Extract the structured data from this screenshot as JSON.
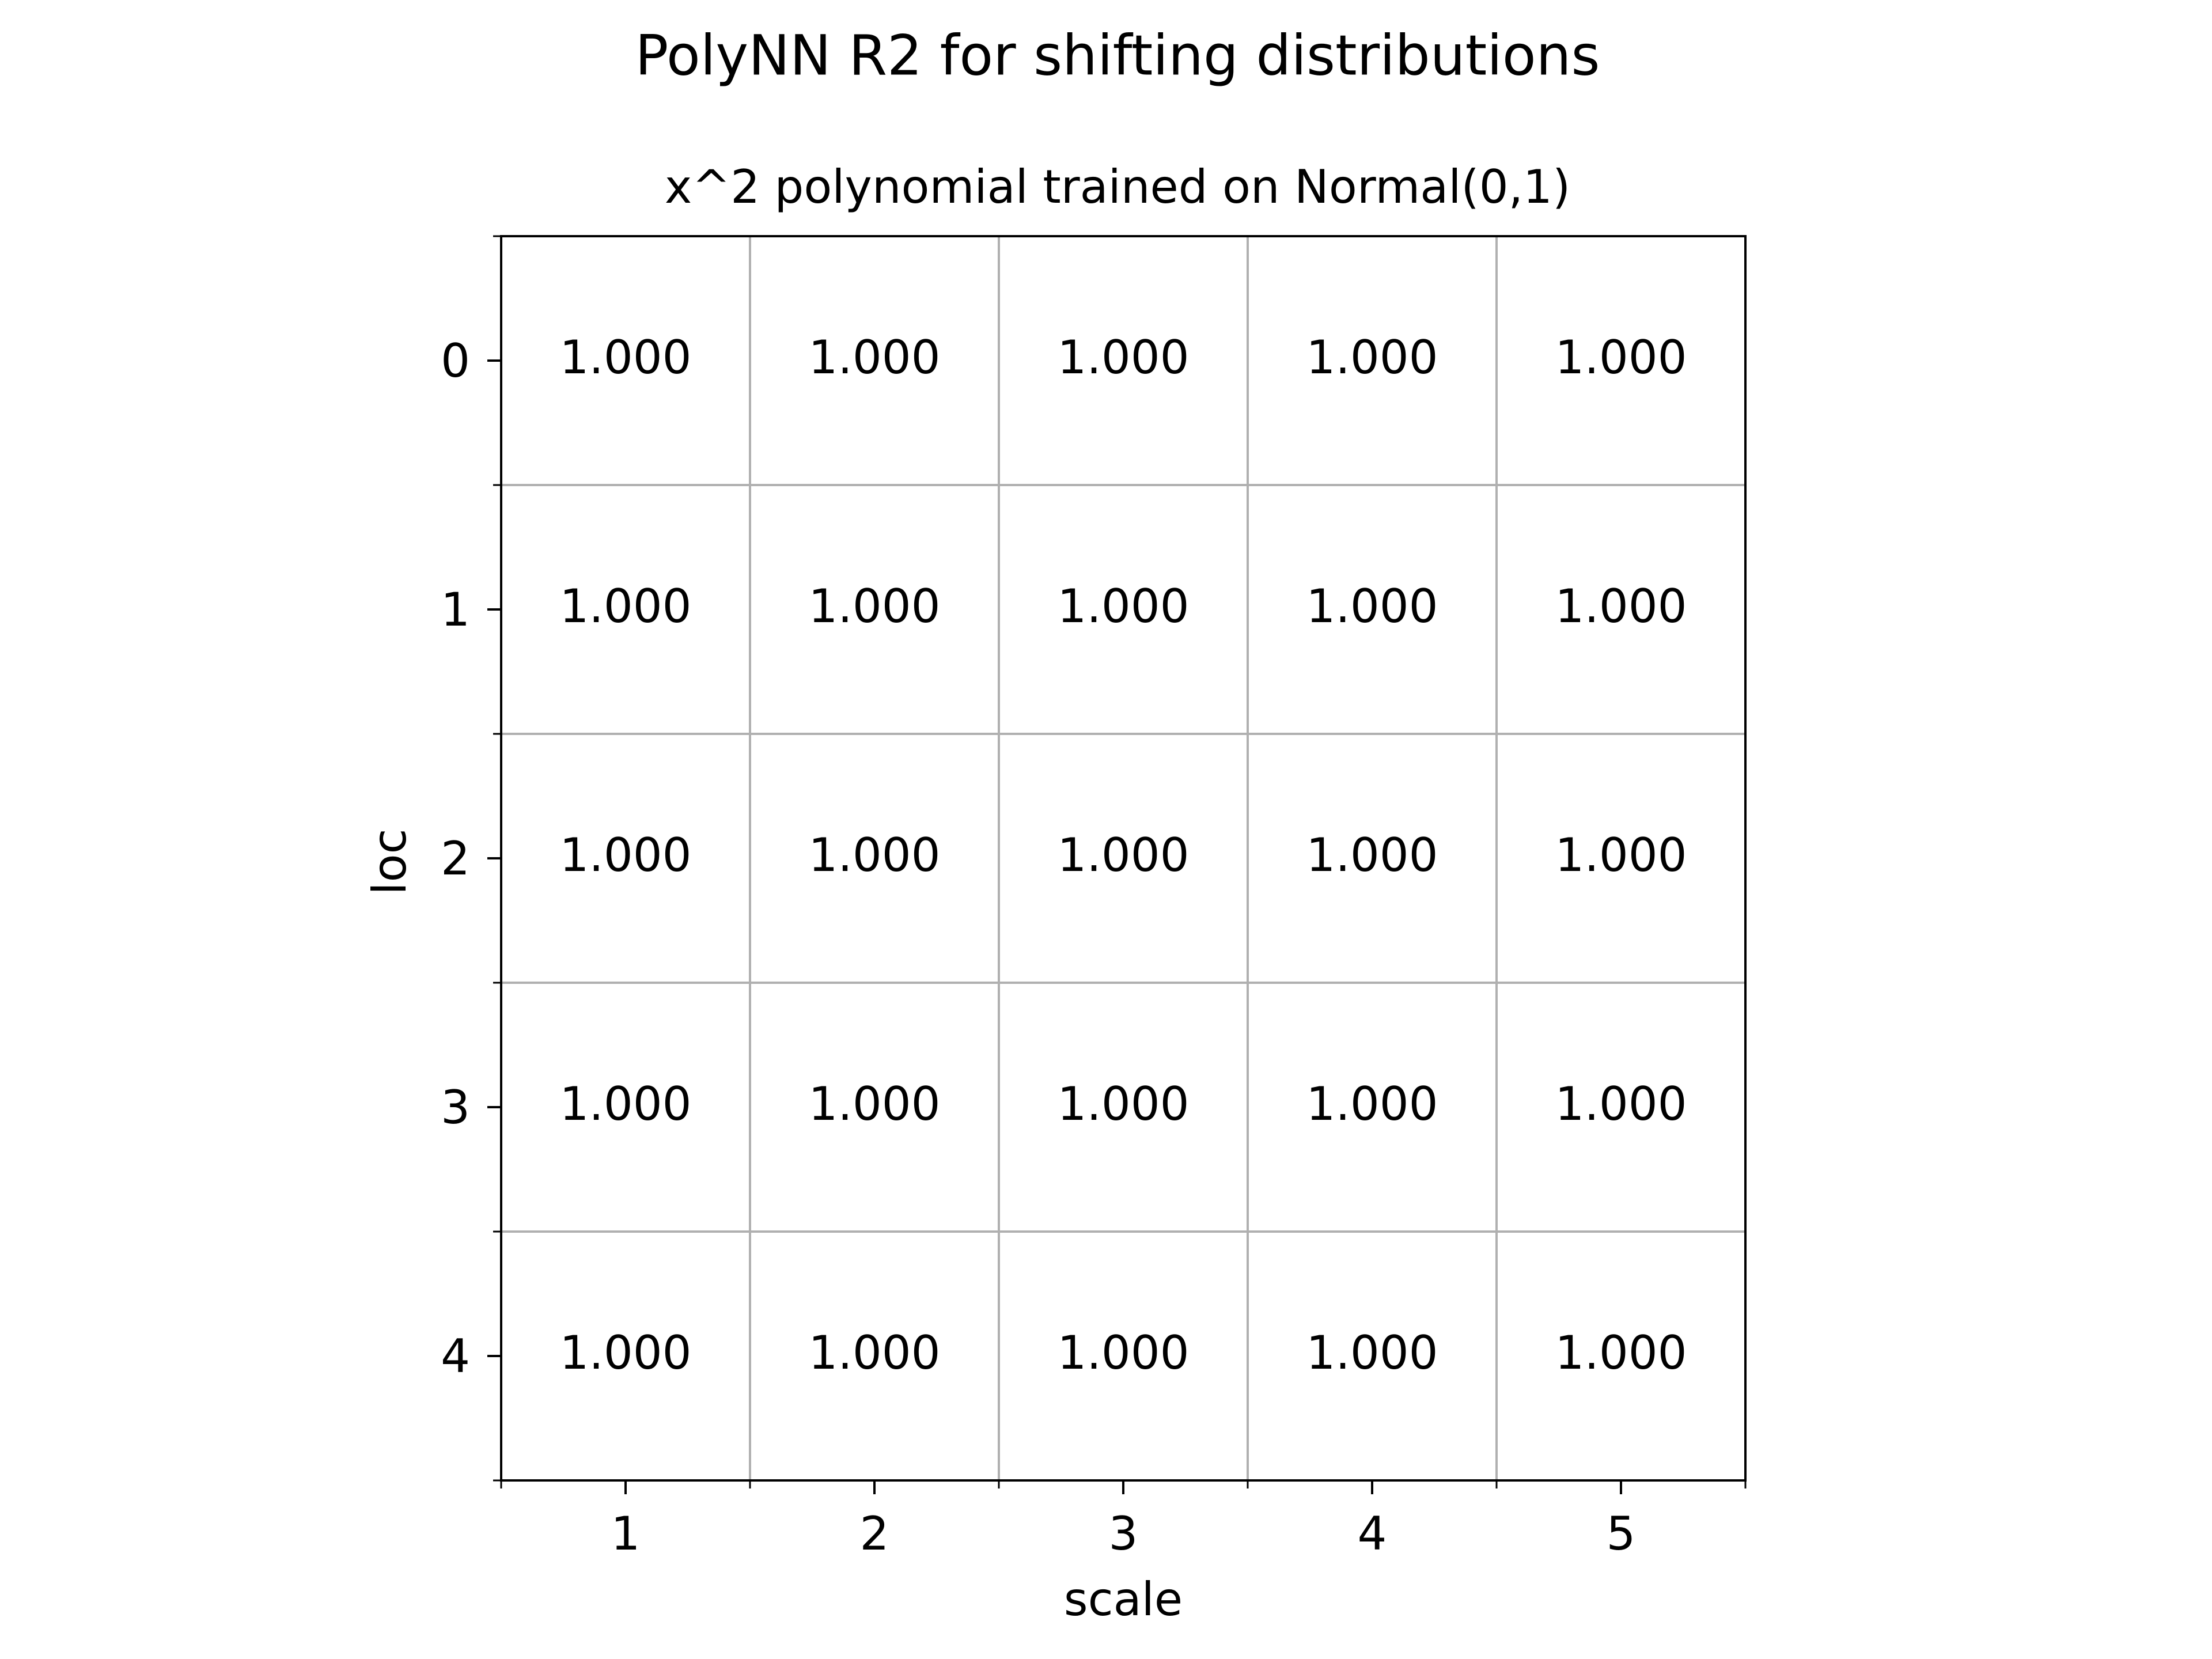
{
  "chart_data": {
    "type": "heatmap",
    "suptitle": "PolyNN R2 for shifting distributions",
    "title": "x^2 polynomial trained on Normal(0,1)",
    "xlabel": "scale",
    "ylabel": "loc",
    "x_ticks": [
      "1",
      "2",
      "3",
      "4",
      "5"
    ],
    "y_ticks": [
      "0",
      "1",
      "2",
      "3",
      "4"
    ],
    "values": [
      [
        "1.000",
        "1.000",
        "1.000",
        "1.000",
        "1.000"
      ],
      [
        "1.000",
        "1.000",
        "1.000",
        "1.000",
        "1.000"
      ],
      [
        "1.000",
        "1.000",
        "1.000",
        "1.000",
        "1.000"
      ],
      [
        "1.000",
        "1.000",
        "1.000",
        "1.000",
        "1.000"
      ],
      [
        "1.000",
        "1.000",
        "1.000",
        "1.000",
        "1.000"
      ]
    ],
    "grid": true,
    "colors": {
      "cell_fill": "#ffffff",
      "grid": "#b0b0b0",
      "axes": "#000000",
      "text": "#000000"
    }
  }
}
